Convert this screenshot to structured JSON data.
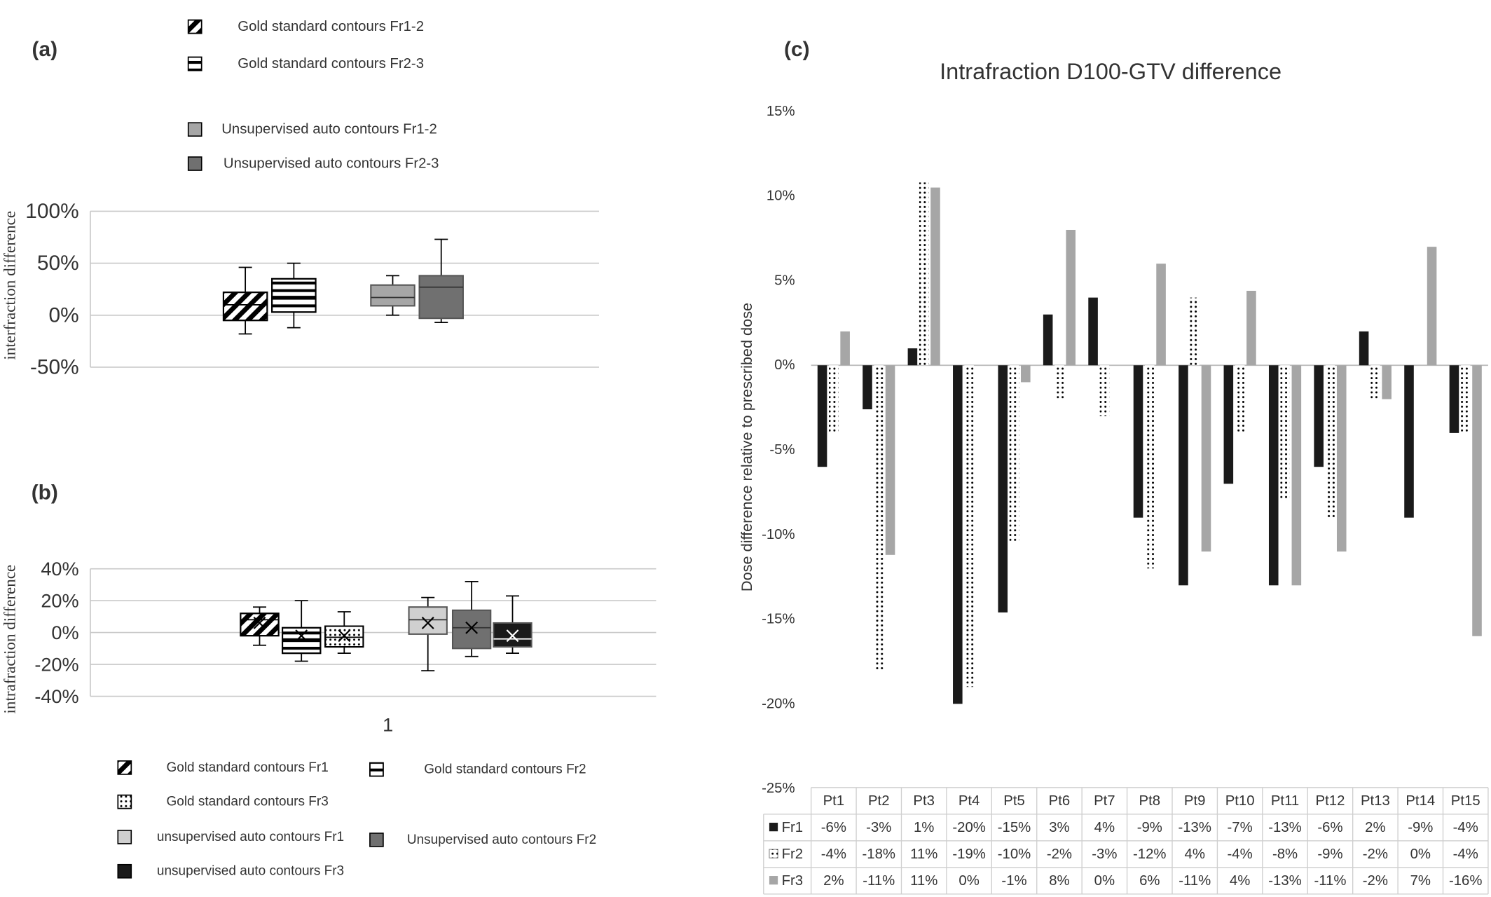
{
  "chart_data": [
    {
      "type": "box",
      "panel_label": "(a)",
      "y_label": "interfraction difference",
      "ylim": [
        -50,
        100
      ],
      "yticks": [
        {
          "value": -50,
          "label": "-50%"
        },
        {
          "value": 0,
          "label": "0%"
        },
        {
          "value": 50,
          "label": "50%"
        },
        {
          "value": 100,
          "label": "100%"
        }
      ],
      "grid": true,
      "series": [
        {
          "name": "Gold standard contours Fr1-2",
          "color": "#ffffff",
          "pattern": "diagonal",
          "min": -18,
          "q1": -5,
          "median": 10,
          "q3": 22,
          "max": 46
        },
        {
          "name": "Gold standard contours Fr2-3",
          "color": "#ffffff",
          "pattern": "horizontal",
          "min": -12,
          "q1": 3,
          "median": 18,
          "q3": 35,
          "max": 50
        },
        {
          "name": "Unsupervised auto  contours Fr1-2",
          "color": "#a6a6a6",
          "min": 0,
          "q1": 9,
          "median": 17,
          "q3": 29,
          "max": 38
        },
        {
          "name": "Unsupervised auto contours Fr2-3",
          "color": "#707070",
          "min": -7,
          "q1": -3,
          "median": 27,
          "q3": 38,
          "max": 73
        }
      ]
    },
    {
      "type": "box",
      "panel_label": "(b)",
      "y_label": "intrafraction difference",
      "categories": [
        "1"
      ],
      "ylim": [
        -40,
        40
      ],
      "yticks": [
        {
          "value": -40,
          "label": "-40%"
        },
        {
          "value": -20,
          "label": "-20%"
        },
        {
          "value": 0,
          "label": "0%"
        },
        {
          "value": 20,
          "label": "20%"
        },
        {
          "value": 40,
          "label": "40%"
        }
      ],
      "grid": true,
      "series": [
        {
          "name": "Gold standard contours Fr1",
          "color": "#ffffff",
          "pattern": "diagonal",
          "min": -8,
          "q1": -2,
          "median": 8,
          "q3": 12,
          "max": 16,
          "mean": 6
        },
        {
          "name": "Gold standard contours Fr2",
          "color": "#ffffff",
          "pattern": "horizontal",
          "min": -18,
          "q1": -13,
          "median": -4,
          "q3": 3,
          "max": 20,
          "mean": -2
        },
        {
          "name": "Gold standard contours Fr3",
          "color": "#ffffff",
          "pattern": "dots",
          "min": -13,
          "q1": -9,
          "median": -3,
          "q3": 4,
          "max": 13,
          "mean": -2
        },
        {
          "name": "unsupervised auto contours Fr1",
          "color": "#d0d0d0",
          "min": -24,
          "q1": -1,
          "median": 8,
          "q3": 16,
          "max": 22,
          "mean": 6
        },
        {
          "name": "Unsupervised auto contours Fr2",
          "color": "#707070",
          "min": -15,
          "q1": -10,
          "median": 3,
          "q3": 14,
          "max": 32,
          "mean": 3
        },
        {
          "name": "unsupervised auto contours Fr3",
          "color": "#1a1a1a",
          "min": -13,
          "q1": -9,
          "median": -4,
          "q3": 6,
          "max": 23,
          "mean": -2
        }
      ]
    },
    {
      "type": "bar",
      "panel_label": "(c)",
      "title": "Intrafraction  D100-GTV difference",
      "y_label": "Dose difference relative to prescribed dose",
      "categories": [
        "Pt1",
        "Pt2",
        "Pt3",
        "Pt4",
        "Pt5",
        "Pt6",
        "Pt7",
        "Pt8",
        "Pt9",
        "Pt10",
        "Pt11",
        "Pt12",
        "Pt13",
        "Pt14",
        "Pt15"
      ],
      "ylim": [
        -25,
        15
      ],
      "yticks": [
        {
          "value": -25,
          "label": "-25%"
        },
        {
          "value": -20,
          "label": "-20%"
        },
        {
          "value": -15,
          "label": "-15%"
        },
        {
          "value": -10,
          "label": "-10%"
        },
        {
          "value": -5,
          "label": "-5%"
        },
        {
          "value": 0,
          "label": "0%"
        },
        {
          "value": 5,
          "label": "5%"
        },
        {
          "value": 10,
          "label": "10%"
        },
        {
          "value": 15,
          "label": "15%"
        }
      ],
      "grid": false,
      "series": [
        {
          "name": "Fr1",
          "color": "#1a1a1a",
          "values": [
            -6,
            -2.6,
            1,
            -20,
            -14.6,
            3,
            4,
            -9,
            -13,
            -7,
            -13,
            -6,
            2,
            -9,
            -4
          ],
          "value_labels": [
            "-6%",
            "-3%",
            "1%",
            "-20%",
            "-15%",
            "3%",
            "4%",
            "-9%",
            "-13%",
            "-7%",
            "-13%",
            "-6%",
            "2%",
            "-9%",
            "-4%"
          ]
        },
        {
          "name": "Fr2",
          "color": "#ffffff",
          "pattern": "dots",
          "values": [
            -4,
            -18,
            10.8,
            -19,
            -10.4,
            -2,
            -3,
            -12,
            4,
            -4,
            -8,
            -9,
            -2,
            0,
            -4
          ],
          "value_labels": [
            "-4%",
            "-18%",
            "11%",
            "-19%",
            "-10%",
            "-2%",
            "-3%",
            "-12%",
            "4%",
            "-4%",
            "-8%",
            "-9%",
            "-2%",
            "0%",
            "-4%"
          ]
        },
        {
          "name": "Fr3",
          "color": "#a6a6a6",
          "values": [
            2,
            -11.2,
            10.5,
            0,
            -1,
            8,
            0,
            6,
            -11,
            4.4,
            -13,
            -11,
            -2,
            7,
            -16
          ],
          "value_labels": [
            "2%",
            "-11%",
            "11%",
            "0%",
            "-1%",
            "8%",
            "0%",
            "6%",
            "-11%",
            "4%",
            "-13%",
            "-11%",
            "-2%",
            "7%",
            "-16%"
          ]
        }
      ]
    }
  ]
}
